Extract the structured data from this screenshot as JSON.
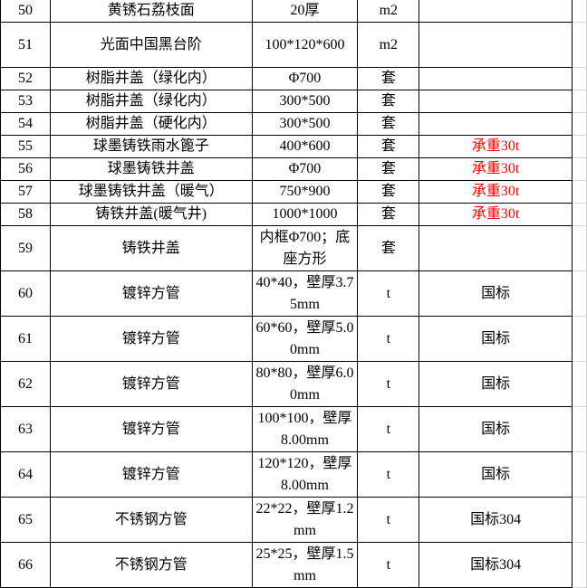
{
  "table": {
    "rows": [
      {
        "no": 50,
        "name": "黄锈石荔枝面",
        "spec": "20厚",
        "unit": "m2"
      },
      {
        "no": 51,
        "name": "光面中国黑台阶",
        "spec": "100*120*600",
        "unit": "m2"
      },
      {
        "no": 52,
        "name": "树脂井盖（绿化内）",
        "spec": "Φ700",
        "unit": "套"
      },
      {
        "no": 53,
        "name": "树脂井盖（绿化内）",
        "spec": "300*500",
        "unit": "套"
      },
      {
        "no": 54,
        "name": "树脂井盖（硬化内）",
        "spec": "300*500",
        "unit": "套"
      },
      {
        "no": 55,
        "name": "球墨铸铁雨水篦子",
        "spec": "400*600",
        "unit": "套",
        "note": "承重30t",
        "note_color": "#ff0000"
      },
      {
        "no": 56,
        "name": "球墨铸铁井盖",
        "spec": "Φ700",
        "unit": "套",
        "note": "承重30t",
        "note_color": "#ff0000"
      },
      {
        "no": 57,
        "name": "球墨铸铁井盖（暖气）",
        "spec": "750*900",
        "unit": "套",
        "note": "承重30t",
        "note_color": "#ff0000"
      },
      {
        "no": 58,
        "name": "铸铁井盖(暖气井)",
        "spec": "1000*1000",
        "unit": "套",
        "note": "承重30t",
        "note_color": "#ff0000"
      },
      {
        "no": 59,
        "name": "铸铁井盖",
        "spec": "内框Φ700；底座方形",
        "unit": "套"
      },
      {
        "no": 60,
        "name": "镀锌方管",
        "spec": "40*40，壁厚3.75mm",
        "unit": "t",
        "note": "国标"
      },
      {
        "no": 61,
        "name": "镀锌方管",
        "spec": "60*60，壁厚5.00mm",
        "unit": "t",
        "note": "国标"
      },
      {
        "no": 62,
        "name": "镀锌方管",
        "spec": "80*80，壁厚6.00mm",
        "unit": "t",
        "note": "国标"
      },
      {
        "no": 63,
        "name": "镀锌方管",
        "spec": "100*100，壁厚8.00mm",
        "unit": "t",
        "note": "国标"
      },
      {
        "no": 64,
        "name": "镀锌方管",
        "spec": "120*120，壁厚8.00mm",
        "unit": "t",
        "note": "国标"
      },
      {
        "no": 65,
        "name": "不锈钢方管",
        "spec": "22*22，壁厚1.2mm",
        "unit": "t",
        "note": "国标304"
      },
      {
        "no": 66,
        "name": "不锈钢方管",
        "spec": "25*25，壁厚1.5mm",
        "unit": "t",
        "note": "国标304"
      }
    ]
  }
}
